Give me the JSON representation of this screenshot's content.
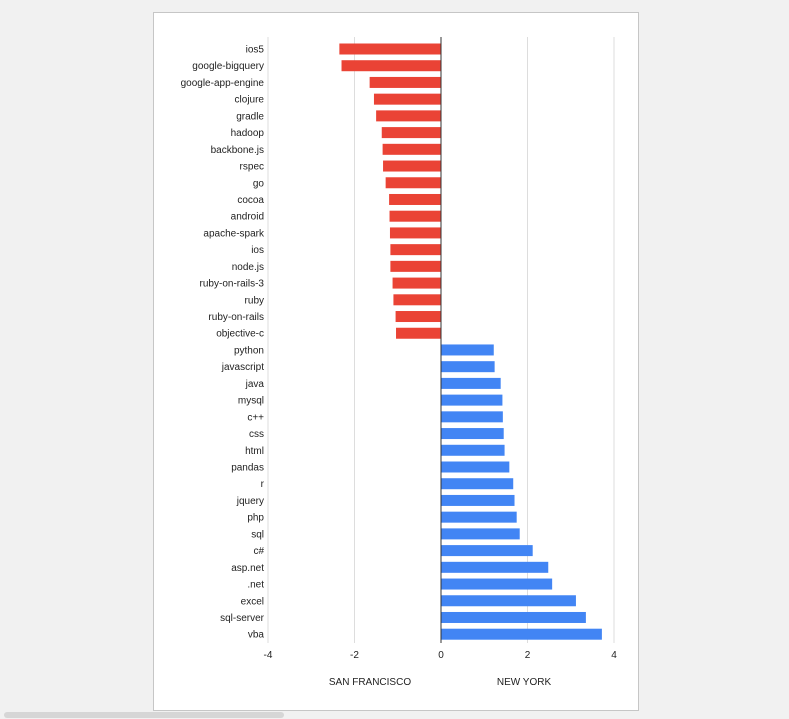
{
  "chart_data": {
    "type": "bar",
    "orientation": "horizontal",
    "categories": [
      "ios5",
      "google-bigquery",
      "google-app-engine",
      "clojure",
      "gradle",
      "hadoop",
      "backbone.js",
      "rspec",
      "go",
      "cocoa",
      "android",
      "apache-spark",
      "ios",
      "node.js",
      "ruby-on-rails-3",
      "ruby",
      "ruby-on-rails",
      "objective-c",
      "python",
      "javascript",
      "java",
      "mysql",
      "c++",
      "css",
      "html",
      "pandas",
      "r",
      "jquery",
      "php",
      "sql",
      "c#",
      "asp.net",
      ".net",
      "excel",
      "sql-server",
      "vba"
    ],
    "values": [
      -2.35,
      -2.3,
      -1.65,
      -1.55,
      -1.5,
      -1.37,
      -1.35,
      -1.34,
      -1.28,
      -1.2,
      -1.19,
      -1.18,
      -1.17,
      -1.17,
      -1.12,
      -1.1,
      -1.05,
      -1.04,
      1.22,
      1.24,
      1.38,
      1.42,
      1.43,
      1.45,
      1.47,
      1.58,
      1.67,
      1.7,
      1.75,
      1.82,
      2.12,
      2.48,
      2.57,
      3.12,
      3.35,
      3.72
    ],
    "xlim": [
      -4,
      4
    ],
    "xticks": [
      "-4",
      "-2",
      "0",
      "2",
      "4"
    ],
    "negative_color": "#ea4335",
    "positive_color": "#4285f4",
    "group_labels": {
      "negative": "SAN FRANCISCO",
      "positive": "NEW YORK"
    },
    "gridlines": true
  }
}
